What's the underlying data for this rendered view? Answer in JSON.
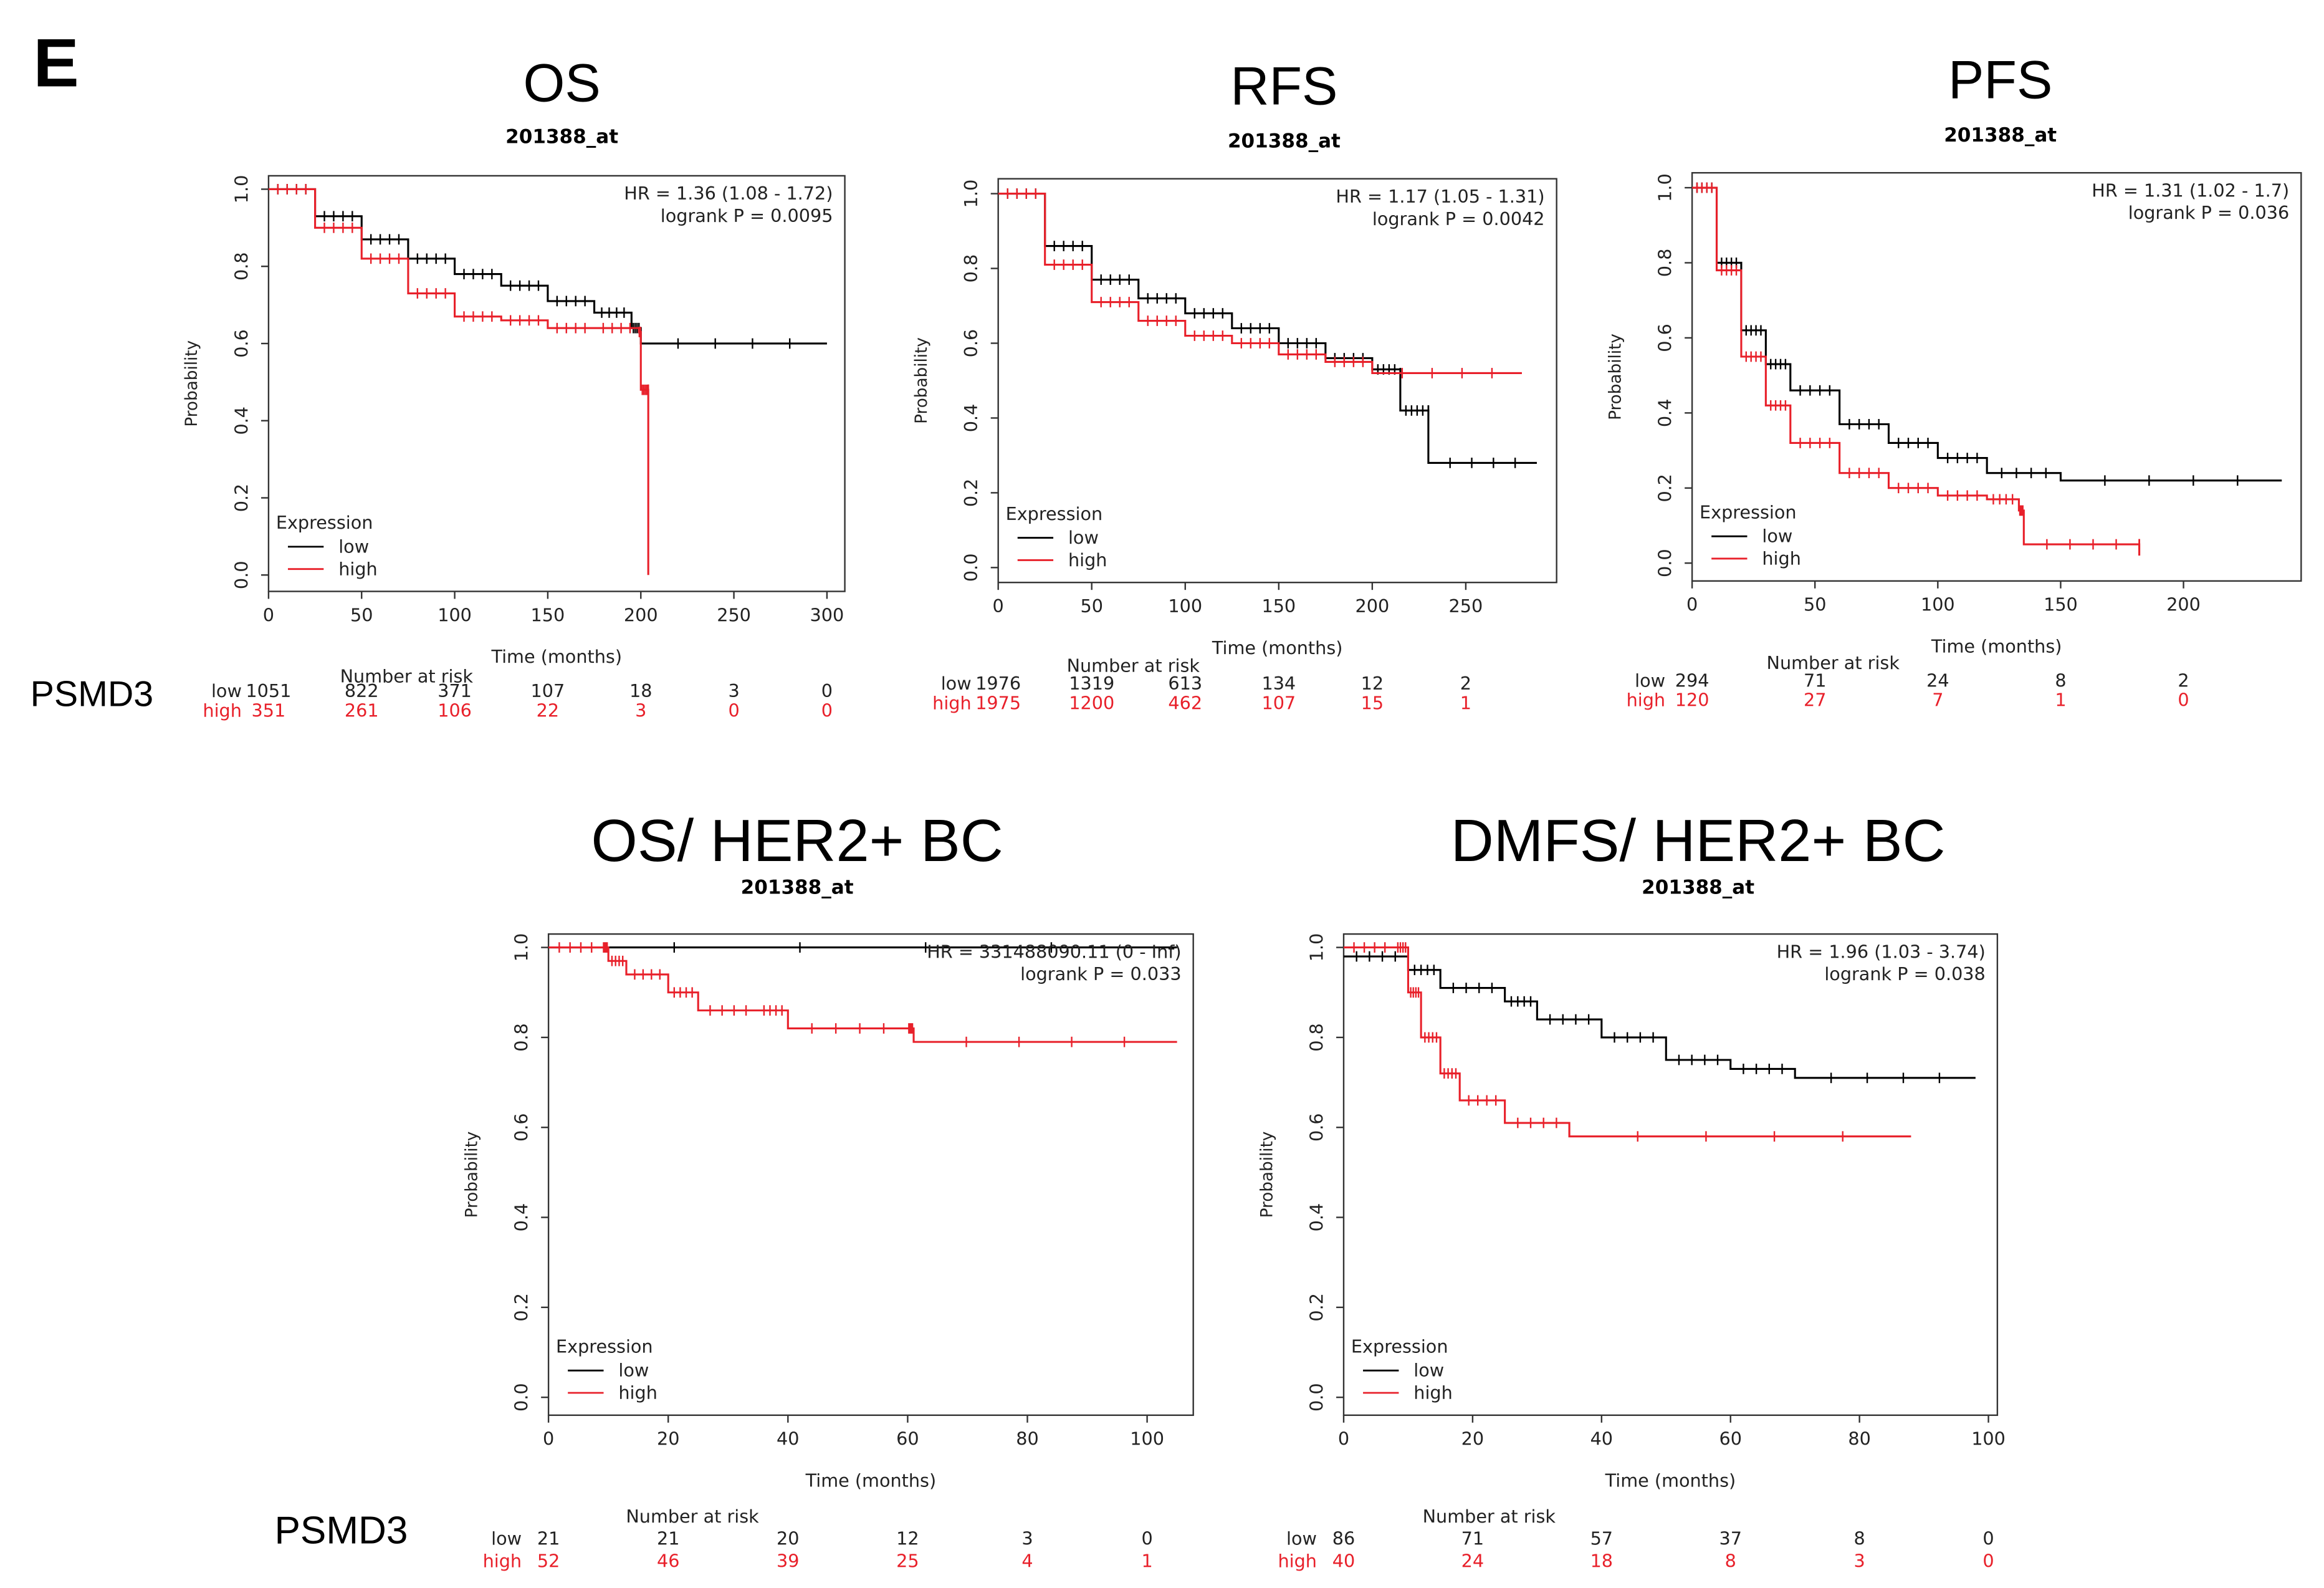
{
  "figure_label": "E",
  "gene_labels": [
    "PSMD3",
    "PSMD3"
  ],
  "colors": {
    "low": "#000000",
    "high": "#e8202a"
  },
  "chart_data": [
    {
      "type": "line",
      "title": "OS",
      "subtitle": "201388_at",
      "hr_text": "HR = 1.36 (1.08 - 1.72)",
      "logrank_text": "logrank P = 0.0095",
      "xlabel": "Time (months)",
      "ylabel": "Probability",
      "xlim": [
        0,
        300
      ],
      "ylim": [
        0,
        1
      ],
      "xticks": [
        "0",
        "50",
        "100",
        "150",
        "200",
        "250",
        "300"
      ],
      "yticks": [
        "0.0",
        "0.2",
        "0.4",
        "0.6",
        "0.8",
        "1.0"
      ],
      "legend": {
        "title": "Expression",
        "entries": [
          "low",
          "high"
        ],
        "position": "bottom-left"
      },
      "risk_table": {
        "title": "Number at risk",
        "low_label": "low",
        "high_label": "high",
        "low": [
          "1051",
          "822",
          "371",
          "107",
          "18",
          "3",
          "0"
        ],
        "high": [
          "351",
          "261",
          "106",
          "22",
          "3",
          "0",
          "0"
        ]
      },
      "series": [
        {
          "name": "low",
          "points": [
            [
              0,
              1
            ],
            [
              25,
              0.93
            ],
            [
              50,
              0.87
            ],
            [
              75,
              0.82
            ],
            [
              100,
              0.78
            ],
            [
              125,
              0.75
            ],
            [
              150,
              0.71
            ],
            [
              175,
              0.68
            ],
            [
              195,
              0.64
            ],
            [
              200,
              0.6
            ],
            [
              300,
              0.6
            ]
          ]
        },
        {
          "name": "high",
          "points": [
            [
              0,
              1
            ],
            [
              25,
              0.9
            ],
            [
              50,
              0.82
            ],
            [
              75,
              0.73
            ],
            [
              100,
              0.67
            ],
            [
              125,
              0.66
            ],
            [
              150,
              0.64
            ],
            [
              175,
              0.64
            ],
            [
              199,
              0.63
            ],
            [
              200,
              0.48
            ],
            [
              204,
              0.48
            ],
            [
              204,
              0
            ]
          ]
        }
      ]
    },
    {
      "type": "line",
      "title": "RFS",
      "subtitle": "201388_at",
      "hr_text": "HR = 1.17 (1.05 - 1.31)",
      "logrank_text": "logrank P = 0.0042",
      "xlabel": "Time (months)",
      "ylabel": "Probability",
      "xlim": [
        0,
        250
      ],
      "ylim": [
        0,
        1
      ],
      "xticks": [
        "0",
        "50",
        "100",
        "150",
        "200",
        "250"
      ],
      "yticks": [
        "0.0",
        "0.2",
        "0.4",
        "0.6",
        "0.8",
        "1.0"
      ],
      "legend": {
        "title": "Expression",
        "entries": [
          "low",
          "high"
        ],
        "position": "bottom-left"
      },
      "risk_table": {
        "title": "Number at risk",
        "low_label": "low",
        "high_label": "high",
        "low": [
          "1976",
          "1319",
          "613",
          "134",
          "12",
          "2"
        ],
        "high": [
          "1975",
          "1200",
          "462",
          "107",
          "15",
          "1"
        ]
      },
      "series": [
        {
          "name": "low",
          "points": [
            [
              0,
              1
            ],
            [
              25,
              0.86
            ],
            [
              50,
              0.77
            ],
            [
              75,
              0.72
            ],
            [
              100,
              0.68
            ],
            [
              125,
              0.64
            ],
            [
              150,
              0.6
            ],
            [
              175,
              0.56
            ],
            [
              200,
              0.53
            ],
            [
              215,
              0.52
            ],
            [
              215,
              0.42
            ],
            [
              230,
              0.42
            ],
            [
              230,
              0.28
            ],
            [
              288,
              0.28
            ]
          ]
        },
        {
          "name": "high",
          "points": [
            [
              0,
              1
            ],
            [
              25,
              0.81
            ],
            [
              50,
              0.71
            ],
            [
              75,
              0.66
            ],
            [
              100,
              0.62
            ],
            [
              125,
              0.6
            ],
            [
              150,
              0.57
            ],
            [
              175,
              0.55
            ],
            [
              200,
              0.52
            ],
            [
              280,
              0.52
            ]
          ]
        }
      ]
    },
    {
      "type": "line",
      "title": "PFS",
      "subtitle": "201388_at",
      "hr_text": "HR = 1.31 (1.02 - 1.7)",
      "logrank_text": "logrank P = 0.036",
      "xlabel": "Time (months)",
      "ylabel": "Probability",
      "xlim": [
        0,
        200
      ],
      "ylim": [
        0,
        1
      ],
      "xticks": [
        "0",
        "50",
        "100",
        "150",
        "200"
      ],
      "yticks": [
        "0.0",
        "0.2",
        "0.4",
        "0.6",
        "0.8",
        "1.0"
      ],
      "legend": {
        "title": "Expression",
        "entries": [
          "low",
          "high"
        ],
        "position": "bottom-left"
      },
      "risk_table": {
        "title": "Number at risk",
        "low_label": "low",
        "high_label": "high",
        "low": [
          "294",
          "71",
          "24",
          "8",
          "2"
        ],
        "high": [
          "120",
          "27",
          "7",
          "1",
          "0"
        ]
      },
      "series": [
        {
          "name": "low",
          "points": [
            [
              0,
              1
            ],
            [
              10,
              0.8
            ],
            [
              20,
              0.62
            ],
            [
              30,
              0.53
            ],
            [
              40,
              0.46
            ],
            [
              60,
              0.37
            ],
            [
              80,
              0.32
            ],
            [
              100,
              0.28
            ],
            [
              120,
              0.24
            ],
            [
              150,
              0.22
            ],
            [
              240,
              0.22
            ]
          ]
        },
        {
          "name": "high",
          "points": [
            [
              0,
              1
            ],
            [
              10,
              0.78
            ],
            [
              20,
              0.55
            ],
            [
              30,
              0.42
            ],
            [
              40,
              0.32
            ],
            [
              60,
              0.24
            ],
            [
              80,
              0.2
            ],
            [
              100,
              0.18
            ],
            [
              120,
              0.17
            ],
            [
              133,
              0.14
            ],
            [
              135,
              0.05
            ],
            [
              182,
              0.05
            ],
            [
              182,
              0.02
            ]
          ]
        }
      ]
    },
    {
      "type": "line",
      "title": "OS/ HER2+ BC",
      "subtitle": "201388_at",
      "hr_text": "HR = 331488090.11 (0 - Inf)",
      "logrank_text": "logrank P = 0.033",
      "xlabel": "Time (months)",
      "ylabel": "Probability",
      "xlim": [
        0,
        100
      ],
      "ylim": [
        0,
        1
      ],
      "xticks": [
        "0",
        "20",
        "40",
        "60",
        "80",
        "100"
      ],
      "yticks": [
        "0.0",
        "0.2",
        "0.4",
        "0.6",
        "0.8",
        "1.0"
      ],
      "legend": {
        "title": "Expression",
        "entries": [
          "low",
          "high"
        ],
        "position": "bottom-left"
      },
      "risk_table": {
        "title": "Number at risk",
        "low_label": "low",
        "high_label": "high",
        "low": [
          "21",
          "21",
          "20",
          "12",
          "3",
          "0"
        ],
        "high": [
          "52",
          "46",
          "39",
          "25",
          "4",
          "1"
        ]
      },
      "series": [
        {
          "name": "low",
          "points": [
            [
              0,
              1
            ],
            [
              105,
              1
            ]
          ]
        },
        {
          "name": "high",
          "points": [
            [
              0,
              1
            ],
            [
              9,
              1
            ],
            [
              10,
              0.97
            ],
            [
              13,
              0.94
            ],
            [
              20,
              0.9
            ],
            [
              25,
              0.86
            ],
            [
              35,
              0.86
            ],
            [
              40,
              0.82
            ],
            [
              60,
              0.82
            ],
            [
              61,
              0.79
            ],
            [
              105,
              0.79
            ]
          ]
        }
      ]
    },
    {
      "type": "line",
      "title": "DMFS/ HER2+ BC",
      "subtitle": "201388_at",
      "hr_text": "HR = 1.96 (1.03 - 3.74)",
      "logrank_text": "logrank P = 0.038",
      "xlabel": "Time (months)",
      "ylabel": "Probability",
      "xlim": [
        0,
        100
      ],
      "ylim": [
        0,
        1
      ],
      "xticks": [
        "0",
        "20",
        "40",
        "60",
        "80",
        "100"
      ],
      "yticks": [
        "0.0",
        "0.2",
        "0.4",
        "0.6",
        "0.8",
        "1.0"
      ],
      "legend": {
        "title": "Expression",
        "entries": [
          "low",
          "high"
        ],
        "position": "bottom-left"
      },
      "risk_table": {
        "title": "Number at risk",
        "low_label": "low",
        "high_label": "high",
        "low": [
          "86",
          "71",
          "57",
          "37",
          "8",
          "0"
        ],
        "high": [
          "40",
          "24",
          "18",
          "8",
          "3",
          "0"
        ]
      },
      "series": [
        {
          "name": "low",
          "points": [
            [
              0,
              0.98
            ],
            [
              10,
              0.95
            ],
            [
              15,
              0.91
            ],
            [
              25,
              0.88
            ],
            [
              30,
              0.84
            ],
            [
              40,
              0.8
            ],
            [
              50,
              0.75
            ],
            [
              60,
              0.73
            ],
            [
              70,
              0.71
            ],
            [
              98,
              0.71
            ]
          ]
        },
        {
          "name": "high",
          "points": [
            [
              0,
              1
            ],
            [
              8,
              1
            ],
            [
              10,
              0.9
            ],
            [
              12,
              0.8
            ],
            [
              15,
              0.72
            ],
            [
              18,
              0.66
            ],
            [
              25,
              0.61
            ],
            [
              35,
              0.58
            ],
            [
              88,
              0.58
            ]
          ]
        }
      ]
    }
  ]
}
